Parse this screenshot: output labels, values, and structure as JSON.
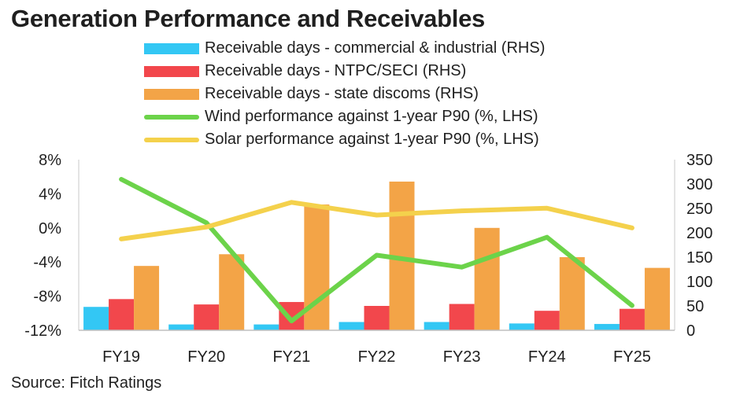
{
  "title": "Generation Performance and Receivables",
  "source": "Source: Fitch Ratings",
  "chart_data": {
    "type": "bar+line",
    "title": "Generation Performance and Receivables",
    "categories": [
      "FY19",
      "FY20",
      "FY21",
      "FY22",
      "FY23",
      "FY24",
      "FY25"
    ],
    "left_axis": {
      "ylim": [
        -12,
        8
      ],
      "ticks": [
        -12,
        -8,
        -4,
        0,
        4,
        8
      ],
      "tick_labels": [
        "-12%",
        "-8%",
        "-4%",
        "0%",
        "4%",
        "8%"
      ]
    },
    "right_axis": {
      "ylim": [
        0,
        350
      ],
      "ticks": [
        0,
        50,
        100,
        150,
        200,
        250,
        300,
        350
      ],
      "tick_labels": [
        "0",
        "50",
        "100",
        "150",
        "200",
        "250",
        "300",
        "350"
      ]
    },
    "bar_series": [
      {
        "name": "Receivable days - commercial & industrial (RHS)",
        "color": "#33c7f4",
        "values": [
          48,
          12,
          12,
          17,
          17,
          14,
          13
        ]
      },
      {
        "name": "Receivable days - NTPC/SECI (RHS)",
        "color": "#f2474c",
        "values": [
          64,
          53,
          58,
          50,
          54,
          40,
          44
        ]
      },
      {
        "name": "Receivable days - state discoms (RHS)",
        "color": "#f3a447",
        "values": [
          132,
          156,
          258,
          305,
          210,
          150,
          128
        ]
      }
    ],
    "line_series": [
      {
        "name": "Wind performance against 1-year P90 (%, LHS)",
        "color": "#6cd34a",
        "values": [
          5.7,
          0.6,
          -10.9,
          -3.2,
          -4.6,
          -1.1,
          -9.1
        ]
      },
      {
        "name": "Solar performance against 1-year P90 (%, LHS)",
        "color": "#f4d14c",
        "values": [
          -1.3,
          0.1,
          3.0,
          1.5,
          2.0,
          2.3,
          0.0
        ]
      }
    ]
  }
}
